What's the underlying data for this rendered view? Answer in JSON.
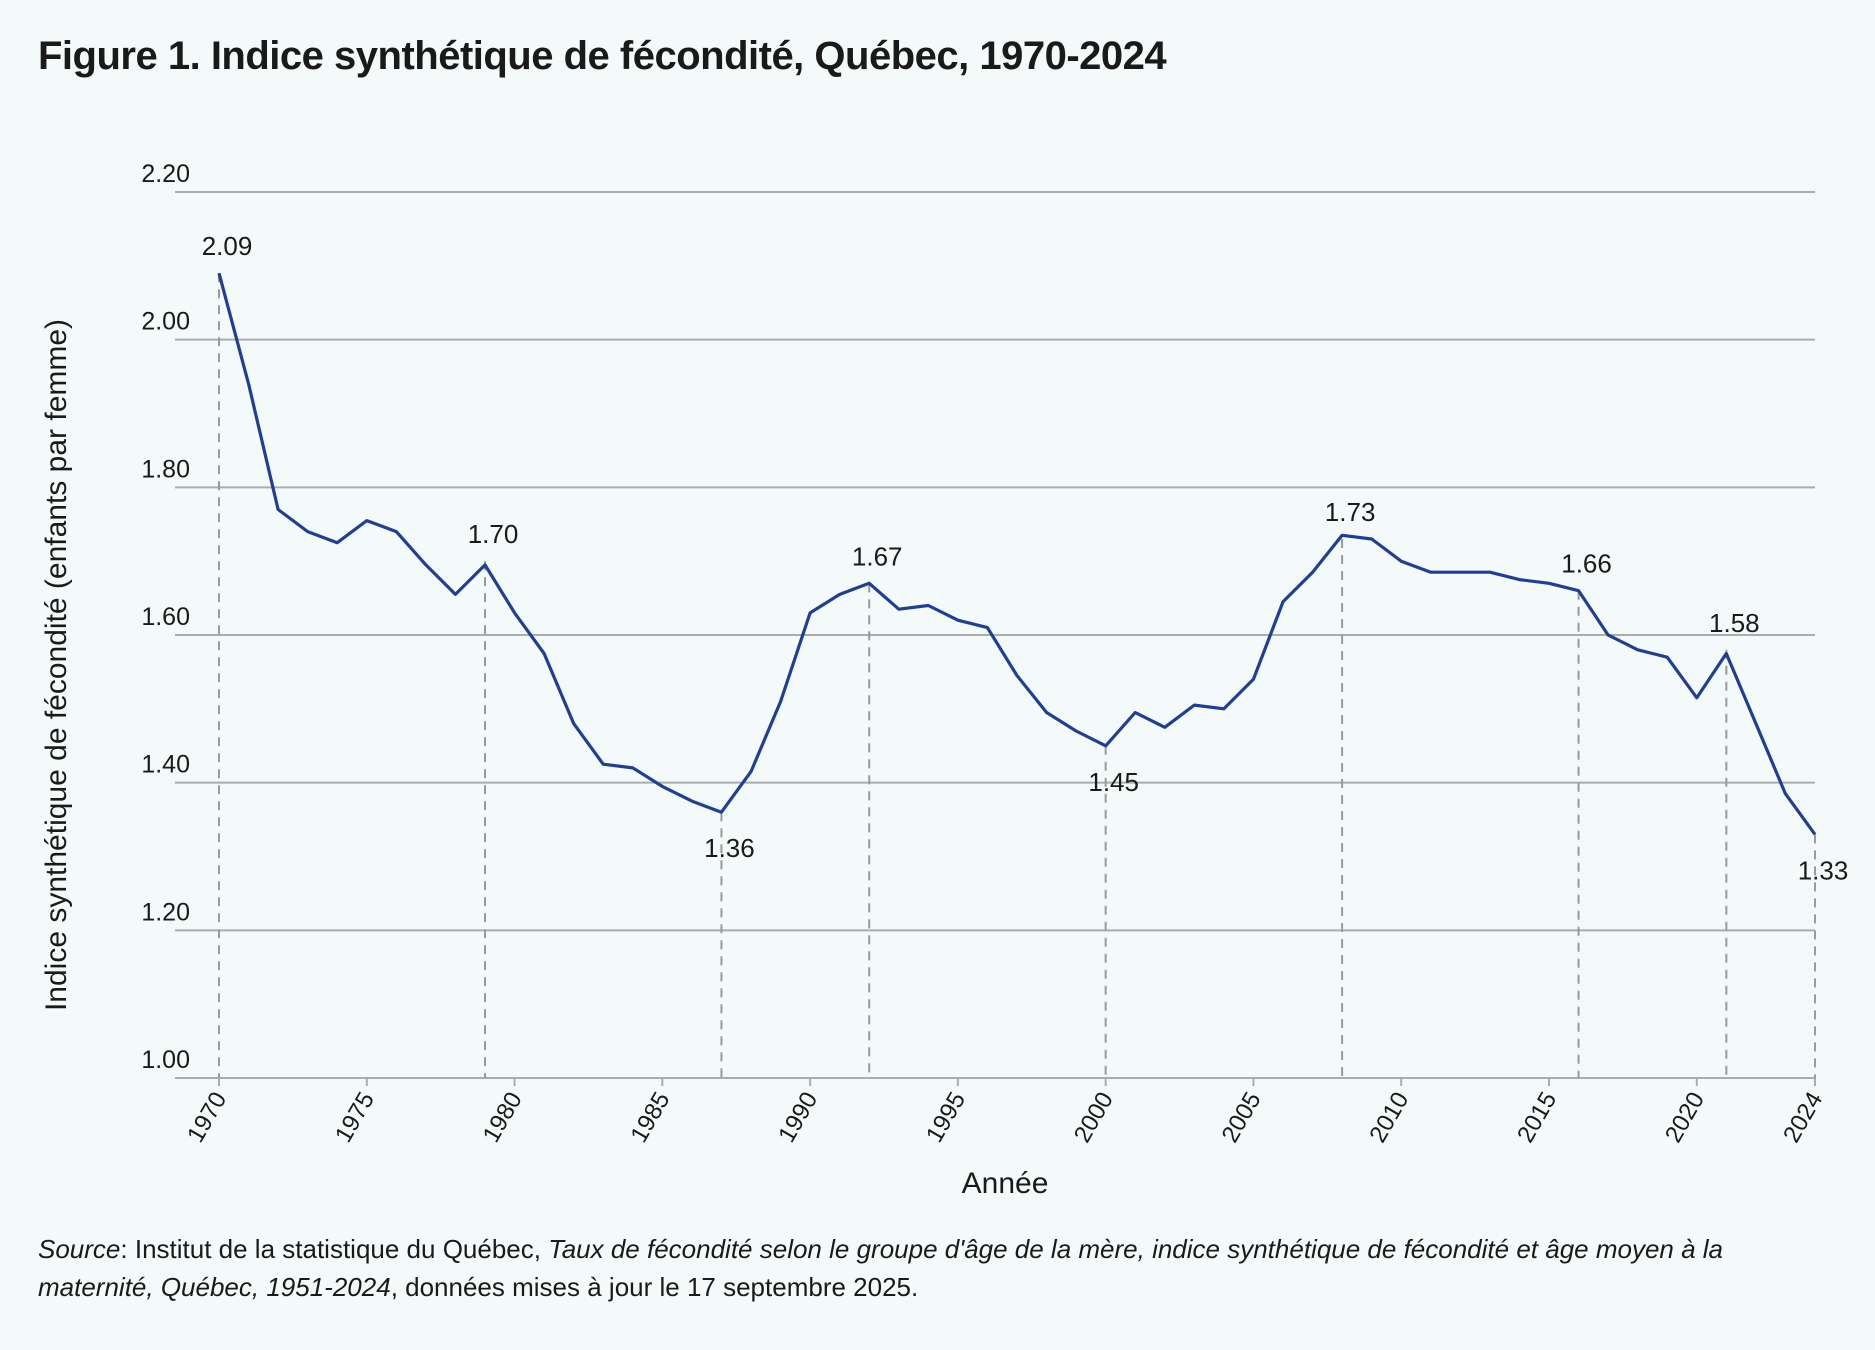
{
  "title": "Figure 1. Indice synthétique de fécondité, Québec, 1970-2024",
  "source": {
    "label": "Source",
    "sep": ": ",
    "org": "Institut de la statistique du Québec, ",
    "publication": "Taux de fécondité selon le groupe d'âge de la mère, indice synthétique de fécondité et âge moyen à la maternité, Québec, 1951-2024",
    "tail": ", données mises à jour le 17 septembre 2025."
  },
  "chart_data": {
    "type": "line",
    "xlabel": "Année",
    "ylabel": "Indice synthétique de fécondité (enfants par femme)",
    "xlim": [
      1970,
      2024
    ],
    "ylim": [
      1.0,
      2.2
    ],
    "x_ticks": [
      1970,
      1975,
      1980,
      1985,
      1990,
      1995,
      2000,
      2005,
      2010,
      2015,
      2020,
      2024
    ],
    "y_ticks": [
      "1.00",
      "1.20",
      "1.40",
      "1.60",
      "1.80",
      "2.00",
      "2.20"
    ],
    "grid": true,
    "line_color": "#1f3f97",
    "series": [
      {
        "x": [
          1970,
          1971,
          1972,
          1973,
          1974,
          1975,
          1976,
          1977,
          1978,
          1979,
          1980,
          1981,
          1982,
          1983,
          1984,
          1985,
          1986,
          1987,
          1988,
          1989,
          1990,
          1991,
          1992,
          1993,
          1994,
          1995,
          1996,
          1997,
          1998,
          1999,
          2000,
          2001,
          2002,
          2003,
          2004,
          2005,
          2006,
          2007,
          2008,
          2009,
          2010,
          2011,
          2012,
          2013,
          2014,
          2015,
          2016,
          2017,
          2018,
          2019,
          2020,
          2021,
          2022,
          2023,
          2024
        ],
        "y": [
          2.09,
          1.94,
          1.77,
          1.74,
          1.725,
          1.755,
          1.74,
          1.695,
          1.655,
          1.695,
          1.63,
          1.575,
          1.48,
          1.425,
          1.42,
          1.395,
          1.375,
          1.36,
          1.415,
          1.51,
          1.63,
          1.655,
          1.67,
          1.635,
          1.64,
          1.62,
          1.61,
          1.545,
          1.495,
          1.47,
          1.45,
          1.495,
          1.475,
          1.505,
          1.5,
          1.54,
          1.645,
          1.685,
          1.735,
          1.73,
          1.7,
          1.685,
          1.685,
          1.685,
          1.675,
          1.67,
          1.66,
          1.6,
          1.58,
          1.57,
          1.515,
          1.575,
          1.48,
          1.385,
          1.33
        ]
      }
    ],
    "annotations": [
      {
        "x": 1970,
        "y": 2.09,
        "label": "2.09",
        "pos": "above"
      },
      {
        "x": 1979,
        "y": 1.7,
        "label": "1.70",
        "pos": "above"
      },
      {
        "x": 1987,
        "y": 1.36,
        "label": "1.36",
        "pos": "below"
      },
      {
        "x": 1992,
        "y": 1.67,
        "label": "1.67",
        "pos": "above"
      },
      {
        "x": 2000,
        "y": 1.45,
        "label": "1.45",
        "pos": "below"
      },
      {
        "x": 2008,
        "y": 1.73,
        "label": "1.73",
        "pos": "above"
      },
      {
        "x": 2016,
        "y": 1.66,
        "label": "1.66",
        "pos": "above"
      },
      {
        "x": 2021,
        "y": 1.58,
        "label": "1.58",
        "pos": "above"
      },
      {
        "x": 2024,
        "y": 1.33,
        "label": "1.33",
        "pos": "below"
      }
    ]
  }
}
